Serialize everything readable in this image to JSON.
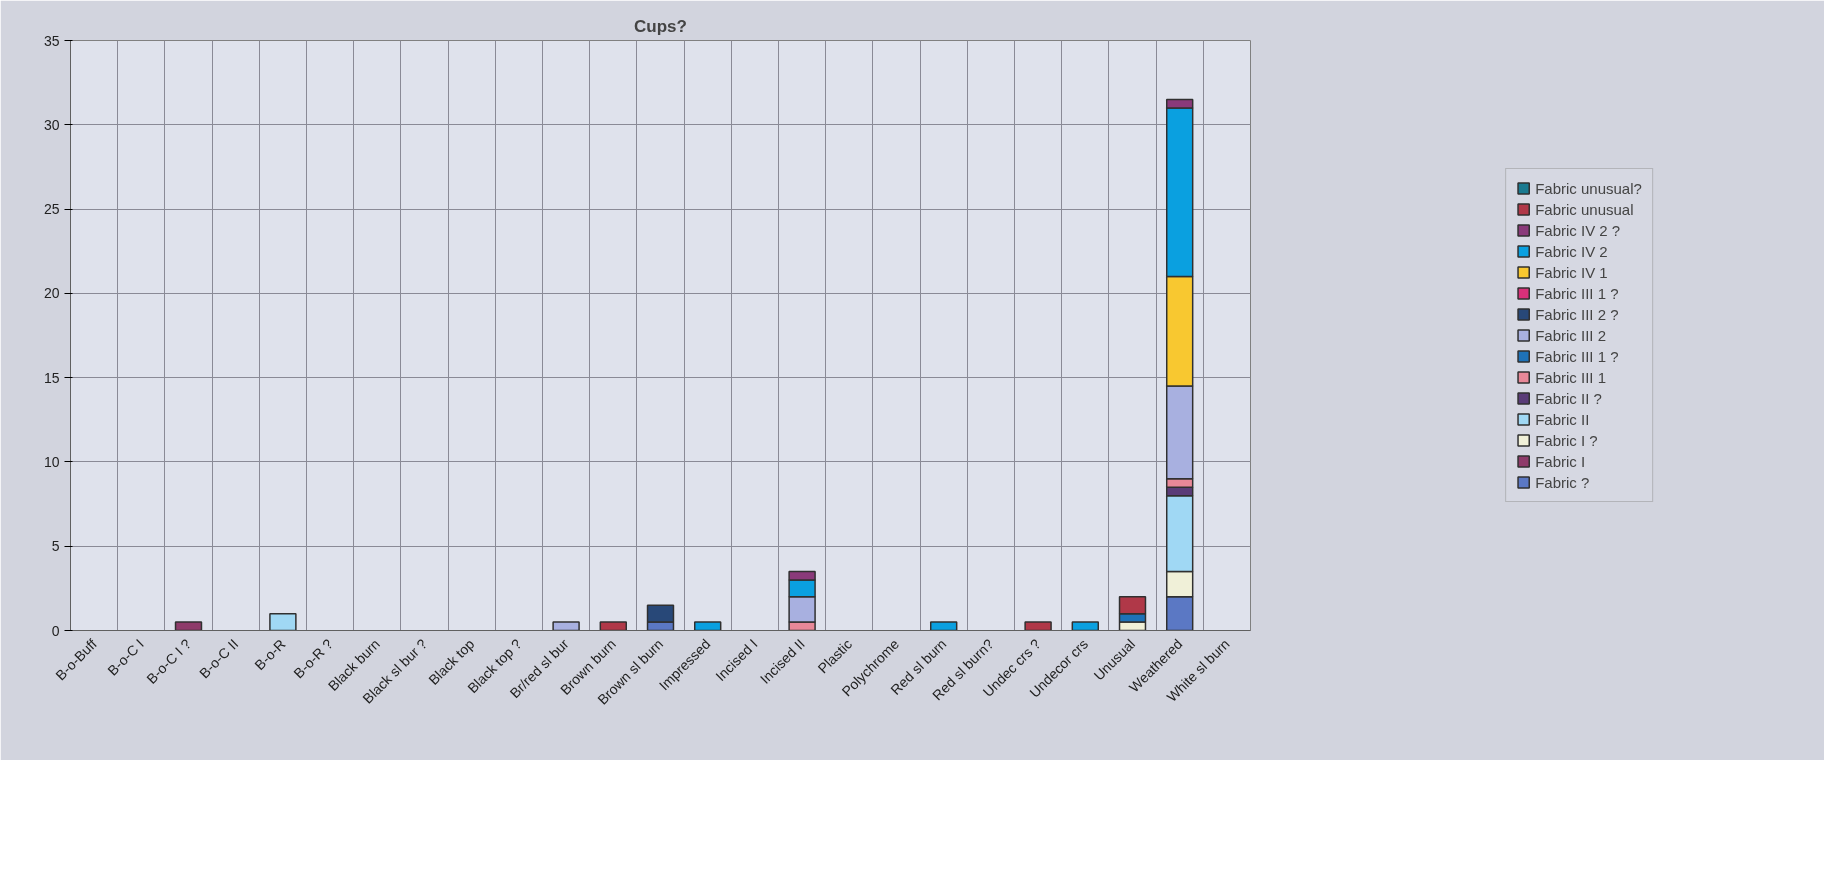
{
  "chart_data": {
    "type": "bar",
    "title": "Cups?",
    "stacked": true,
    "grid": true,
    "legend": "right",
    "categories": [
      "B-o-Buff",
      "B-o-C I",
      "B-o-C I ?",
      "B-o-C II",
      "B-o-R",
      "B-o-R ?",
      "Black burn",
      "Black sl bur ?",
      "Black top",
      "Black top ?",
      "Br/red sl bur",
      "Brown burn",
      "Brown sl burn",
      "Impressed",
      "Incised I",
      "Incised II",
      "Plastic",
      "Polychrome",
      "Red sl burn",
      "Red sl burn?",
      "Undec crs ?",
      "Undecor crs",
      "Unusual",
      "Weathered",
      "White sl burn"
    ],
    "ylim": [
      0,
      35
    ],
    "yticks": [
      0,
      5,
      10,
      15,
      20,
      25,
      30,
      35
    ],
    "series": [
      {
        "name": "Fabric ?",
        "color": "#5b78c4",
        "values": [
          null,
          null,
          null,
          null,
          null,
          null,
          null,
          null,
          null,
          null,
          null,
          null,
          0.5,
          null,
          null,
          null,
          null,
          null,
          null,
          null,
          null,
          null,
          null,
          2,
          null
        ]
      },
      {
        "name": "Fabric I",
        "color": "#8e3b6a",
        "values": [
          null,
          null,
          0.5,
          null,
          null,
          null,
          null,
          null,
          null,
          null,
          null,
          null,
          null,
          null,
          null,
          null,
          null,
          null,
          null,
          null,
          null,
          null,
          null,
          null,
          null
        ]
      },
      {
        "name": "Fabric I ?",
        "color": "#f0f0d8",
        "values": [
          null,
          null,
          null,
          null,
          null,
          null,
          null,
          null,
          null,
          null,
          null,
          null,
          null,
          null,
          null,
          null,
          null,
          null,
          null,
          null,
          null,
          null,
          0.5,
          1.5,
          null
        ]
      },
      {
        "name": "Fabric II",
        "color": "#a0d8f4",
        "values": [
          null,
          null,
          null,
          null,
          1,
          null,
          null,
          null,
          null,
          null,
          null,
          null,
          null,
          null,
          null,
          null,
          null,
          null,
          null,
          null,
          null,
          null,
          null,
          4.5,
          null
        ]
      },
      {
        "name": "Fabric II ?",
        "color": "#5a3c78",
        "values": [
          null,
          null,
          null,
          null,
          null,
          null,
          null,
          null,
          null,
          null,
          null,
          null,
          null,
          null,
          null,
          null,
          null,
          null,
          null,
          null,
          null,
          null,
          null,
          0.5,
          null
        ]
      },
      {
        "name": "Fabric III 1",
        "color": "#e88898",
        "values": [
          null,
          null,
          null,
          null,
          null,
          null,
          null,
          null,
          null,
          null,
          null,
          null,
          null,
          null,
          null,
          0.5,
          null,
          null,
          null,
          null,
          null,
          null,
          null,
          0.5,
          null
        ]
      },
      {
        "name": "Fabric III 1 ?",
        "color": "#1e72b8",
        "values": [
          null,
          null,
          null,
          null,
          null,
          null,
          null,
          null,
          null,
          null,
          null,
          null,
          null,
          null,
          null,
          null,
          null,
          null,
          null,
          null,
          null,
          null,
          0.5,
          null,
          null
        ]
      },
      {
        "name": "Fabric III 2",
        "color": "#a8b0e0",
        "values": [
          null,
          null,
          null,
          null,
          null,
          null,
          null,
          null,
          null,
          null,
          0.5,
          null,
          null,
          null,
          null,
          1.5,
          null,
          null,
          null,
          null,
          null,
          null,
          null,
          5.5,
          null
        ]
      },
      {
        "name": "Fabric III 2 ?",
        "color": "#284878",
        "values": [
          null,
          null,
          null,
          null,
          null,
          null,
          null,
          null,
          null,
          null,
          null,
          null,
          1,
          null,
          null,
          null,
          null,
          null,
          null,
          null,
          null,
          null,
          null,
          null,
          null
        ]
      },
      {
        "name": "Fabric III 1 ?",
        "color": "#d8307a",
        "values": [
          null,
          null,
          null,
          null,
          null,
          null,
          null,
          null,
          null,
          null,
          null,
          null,
          null,
          null,
          null,
          null,
          null,
          null,
          null,
          null,
          null,
          null,
          null,
          null,
          null
        ]
      },
      {
        "name": "Fabric IV 1",
        "color": "#f8c830",
        "values": [
          null,
          null,
          null,
          null,
          null,
          null,
          null,
          null,
          null,
          null,
          null,
          null,
          null,
          null,
          null,
          null,
          null,
          null,
          null,
          null,
          null,
          null,
          null,
          6.5,
          null
        ]
      },
      {
        "name": "Fabric IV 2",
        "color": "#0aa0e0",
        "values": [
          null,
          null,
          null,
          null,
          null,
          null,
          null,
          null,
          null,
          null,
          null,
          null,
          null,
          0.5,
          null,
          1,
          null,
          null,
          0.5,
          null,
          null,
          0.5,
          null,
          10,
          null
        ]
      },
      {
        "name": "Fabric IV 2 ?",
        "color": "#8a3a7a",
        "values": [
          null,
          null,
          null,
          null,
          null,
          null,
          null,
          null,
          null,
          null,
          null,
          null,
          null,
          null,
          null,
          0.5,
          null,
          null,
          null,
          null,
          null,
          null,
          null,
          0.5,
          null
        ]
      },
      {
        "name": "Fabric unusual",
        "color": "#b03848",
        "values": [
          null,
          null,
          null,
          null,
          null,
          null,
          null,
          null,
          null,
          null,
          null,
          0.5,
          null,
          null,
          null,
          null,
          null,
          null,
          null,
          null,
          0.5,
          null,
          1,
          null,
          null
        ]
      },
      {
        "name": "Fabric unusual?",
        "color": "#1a7a90",
        "values": [
          null,
          null,
          null,
          null,
          null,
          null,
          null,
          null,
          null,
          null,
          null,
          null,
          null,
          null,
          null,
          null,
          null,
          null,
          null,
          null,
          null,
          null,
          null,
          null,
          null
        ]
      }
    ]
  }
}
